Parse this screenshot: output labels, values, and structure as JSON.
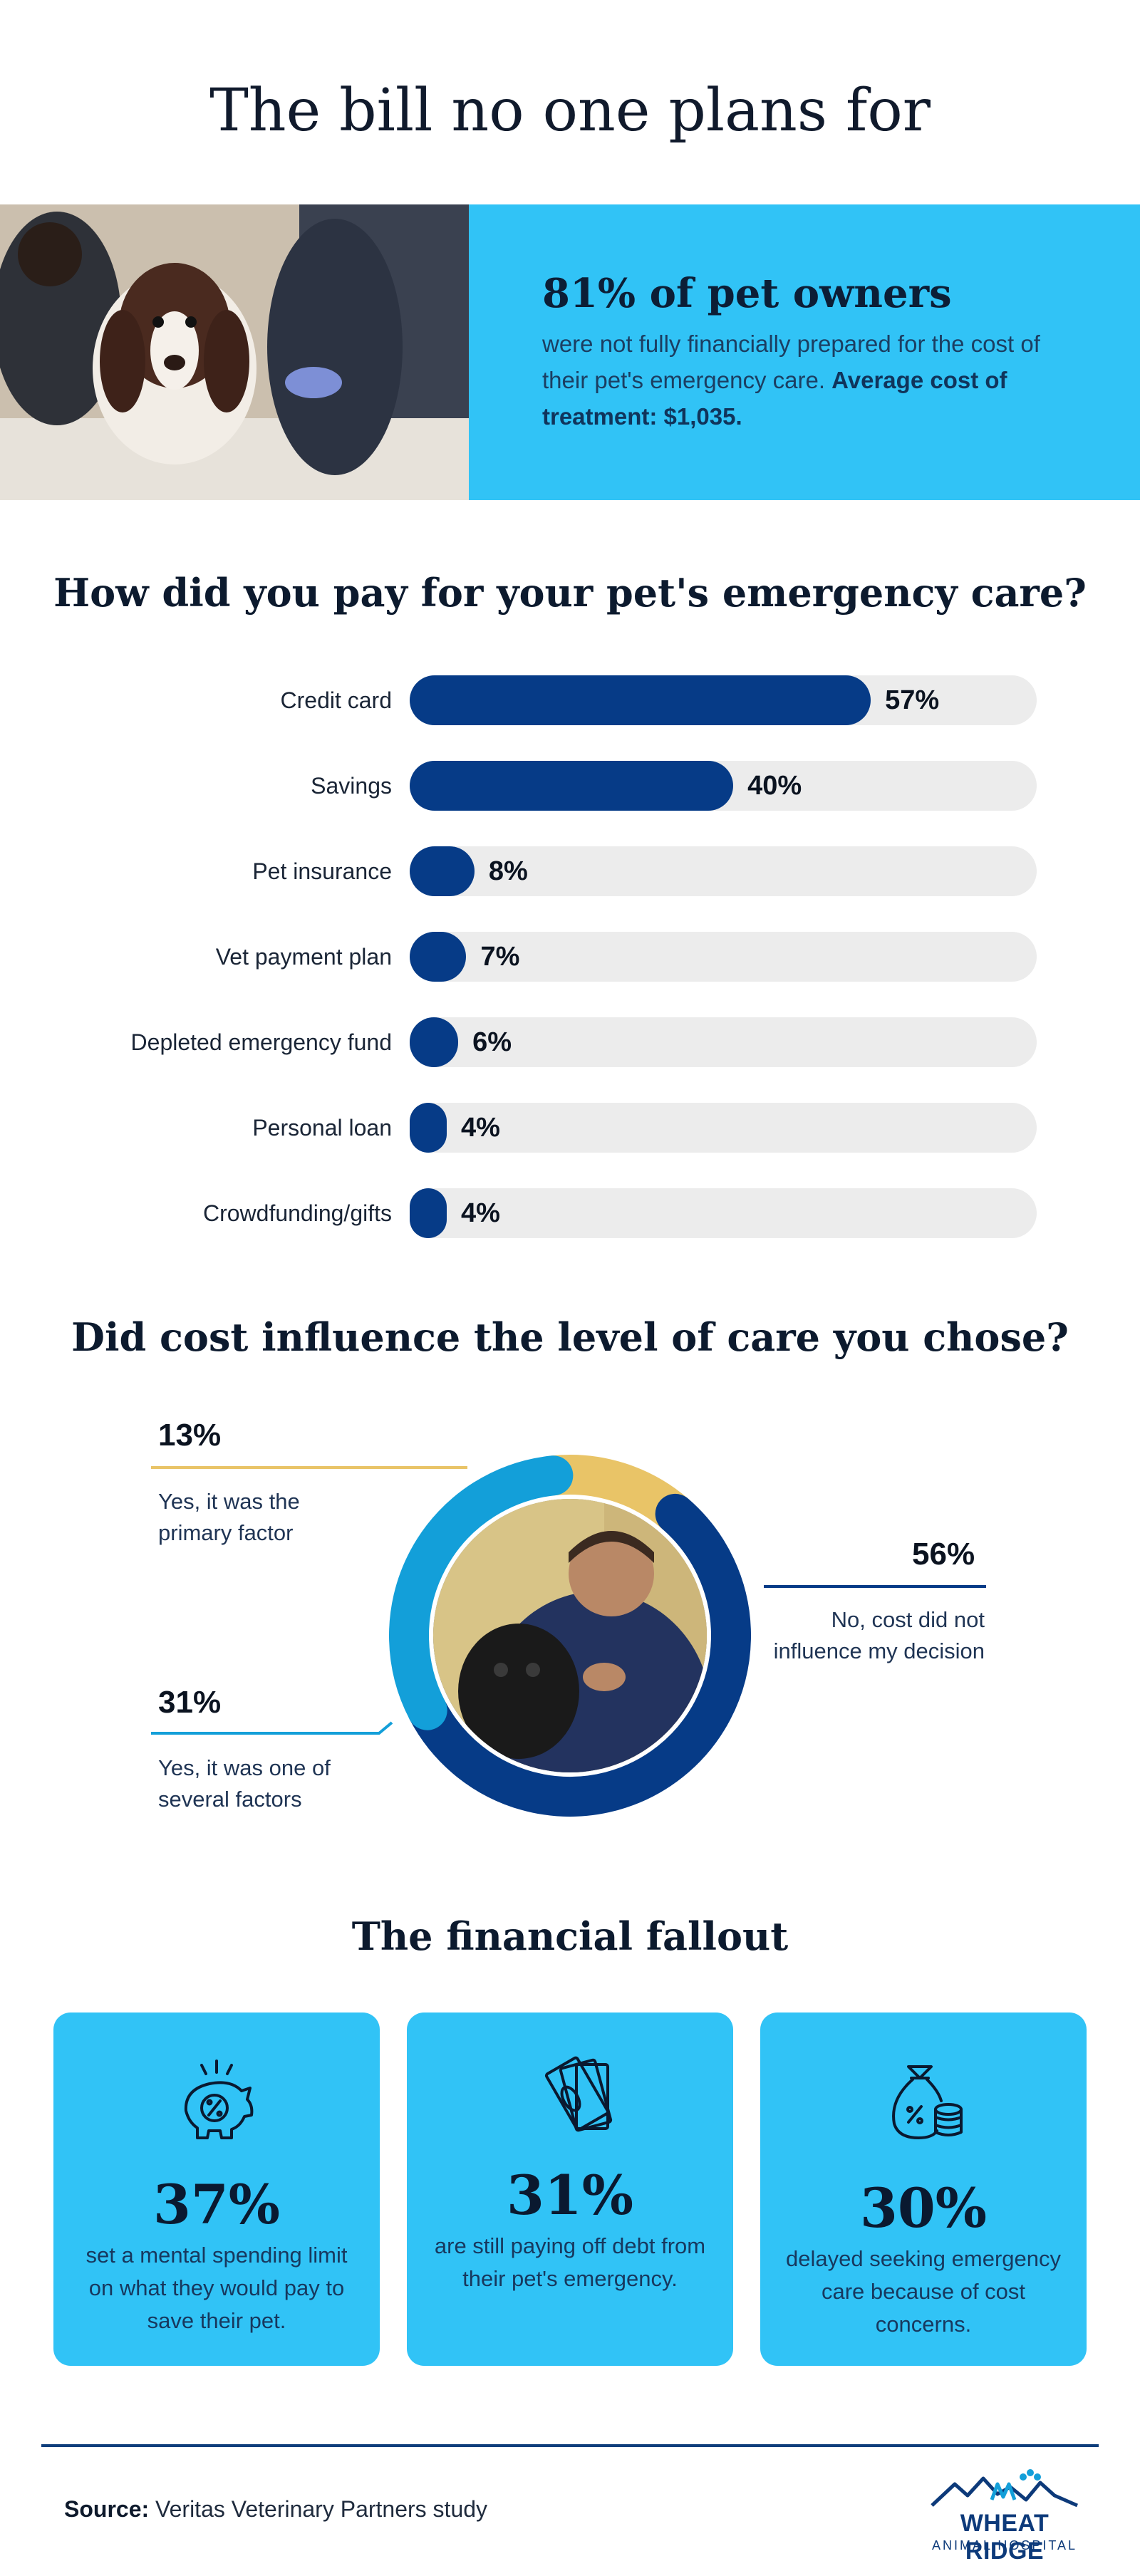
{
  "title": "The bill no one plans for",
  "hero": {
    "headline": "81% of pet owners",
    "body": "were not fully financially prepared for the cost of their pet's emergency care.",
    "avg_cost": "Average cost of treatment: $1,035."
  },
  "payment": {
    "title": "How did you pay for your pet's emergency care?"
  },
  "influence": {
    "title": "Did cost influence the level of care you chose?"
  },
  "fallout": {
    "title": "The financial fallout",
    "cards": [
      {
        "icon": "piggy-bank-percent-icon",
        "value": "37%",
        "text": "set a mental spending limit on what they would pay to save their pet."
      },
      {
        "icon": "cash-bills-icon",
        "value": "31%",
        "text": "are still paying off debt from their pet's emergency."
      },
      {
        "icon": "money-bag-coins-icon",
        "value": "30%",
        "text": "delayed seeking emergency care because of cost concerns."
      }
    ]
  },
  "footer": {
    "source_label": "Source:",
    "source_text": "Veritas Veterinary Partners study",
    "logo_name": "WHEAT RIDGE",
    "logo_sub": "ANIMAL HOSPITAL"
  },
  "colors": {
    "accent_blue": "#31c3f6",
    "navy": "#063b87",
    "yellow": "#e9c467",
    "mid_blue": "#139fd9",
    "track": "#ececec"
  },
  "chart_data": [
    {
      "type": "bar",
      "orientation": "horizontal",
      "title": "How did you pay for your pet's emergency care?",
      "categories": [
        "Credit card",
        "Savings",
        "Pet insurance",
        "Vet payment plan",
        "Depleted emergency fund",
        "Personal loan",
        "Crowdfunding/gifts"
      ],
      "values": [
        57,
        40,
        8,
        7,
        6,
        4,
        4
      ],
      "value_labels": [
        "57%",
        "40%",
        "8%",
        "7%",
        "6%",
        "4%",
        "4%"
      ],
      "xlim": [
        0,
        100
      ],
      "grid": false
    },
    {
      "type": "pie",
      "variant": "donut",
      "title": "Did cost influence the level of care you chose?",
      "categories": [
        "Yes, it was the primary factor",
        "No, cost did not influence my decision",
        "Yes, it was one of several factors"
      ],
      "values": [
        13,
        56,
        31
      ],
      "value_labels": [
        "13%",
        "56%",
        "31%"
      ],
      "colors": [
        "#e9c467",
        "#063b87",
        "#139fd9"
      ]
    }
  ]
}
